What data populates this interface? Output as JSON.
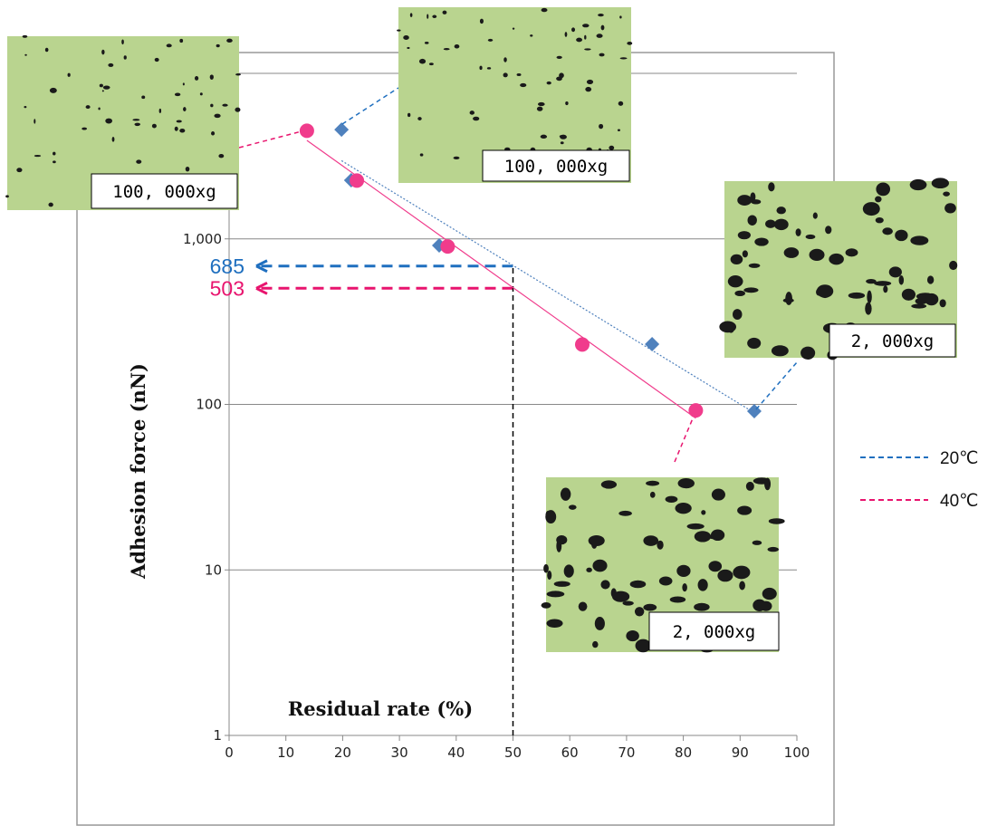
{
  "chart_data": {
    "type": "scatter",
    "x_label": "Residual rate (%)",
    "y_label": "Adhesion force (nN)",
    "xlim": [
      0,
      100
    ],
    "xticks": [
      0,
      10,
      20,
      30,
      40,
      50,
      60,
      70,
      80,
      90,
      100
    ],
    "ylim": [
      1,
      10000
    ],
    "yticks": [
      1,
      10,
      100,
      {
        "value": 1000,
        "label": "1,000"
      }
    ],
    "log_y": true,
    "grid": true,
    "trendline": true,
    "legend": "right",
    "series": [
      {
        "name": "20℃",
        "color": "#4f81bd",
        "marker": "diamond",
        "x": [
          19.8,
          21.5,
          37,
          74.5,
          92.5
        ],
        "values": [
          4570,
          2260,
          913,
          231,
          91
        ]
      },
      {
        "name": "40℃",
        "color": "#f03c8c",
        "marker": "circle",
        "x": [
          13.7,
          22.5,
          38.5,
          62.2,
          82.2
        ],
        "values": [
          4500,
          2250,
          900,
          230,
          92
        ]
      }
    ],
    "annotations": [
      {
        "text": "685",
        "value": 685,
        "x": 50,
        "color": "#1f6fbf"
      },
      {
        "text": "503",
        "value": 503,
        "x": 50,
        "color": "#e8146e"
      }
    ],
    "insets": [
      {
        "label": "100, 000xg"
      },
      {
        "label": "100, 000xg"
      },
      {
        "label": "2, 000xg"
      },
      {
        "label": "2, 000xg"
      }
    ]
  }
}
